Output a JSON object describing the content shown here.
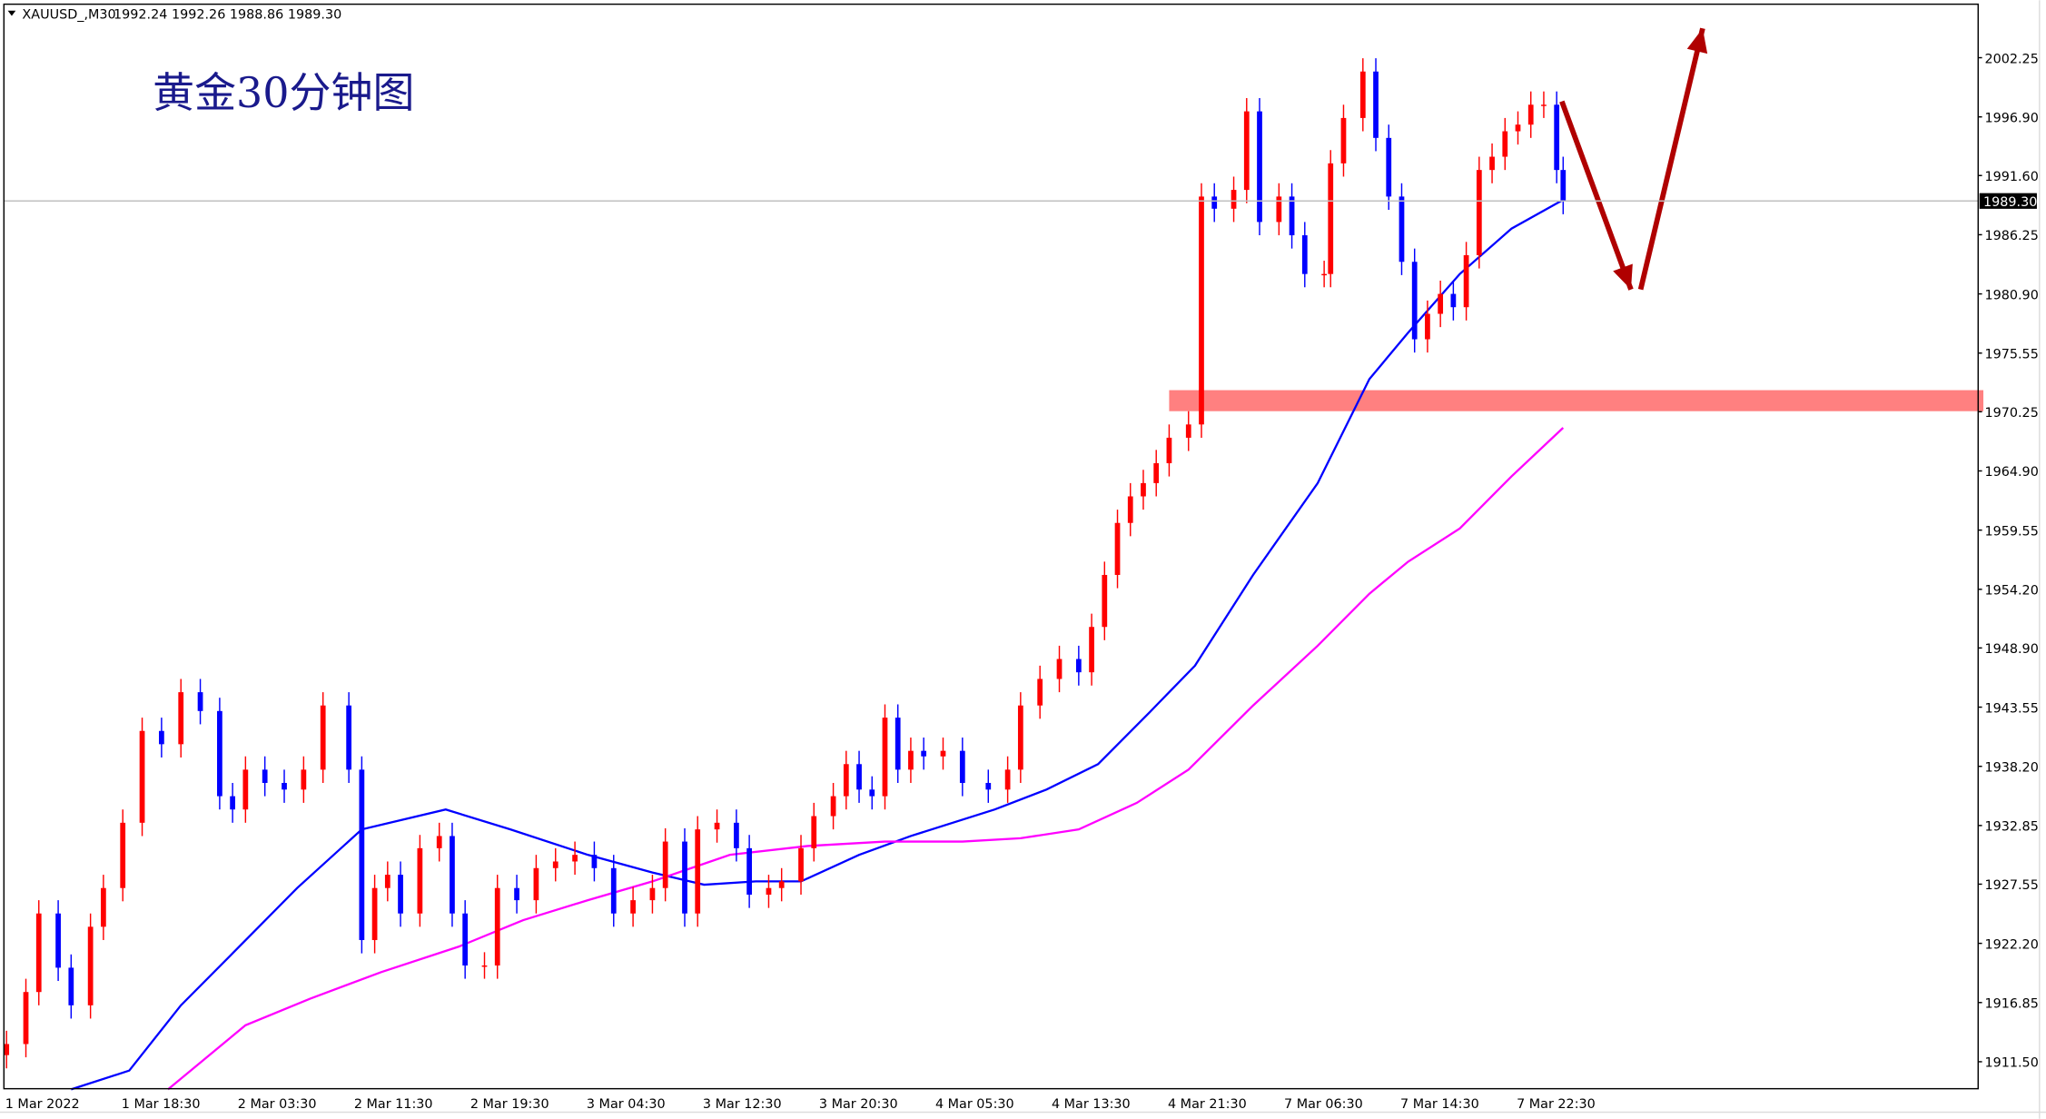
{
  "header": {
    "symbol": "XAUUSD_,M30",
    "ohlc": "1992.24 1992.26 1988.86 1989.30"
  },
  "chart_data": {
    "type": "candlestick",
    "title": "黄金30分钟图",
    "ylim": [
      1909.18,
      2007.44
    ],
    "y_ticks": [
      "2002.25",
      "1996.90",
      "1991.60",
      "1986.25",
      "1980.90",
      "1975.55",
      "1970.25",
      "1964.90",
      "1959.55",
      "1954.20",
      "1948.90",
      "1943.55",
      "1938.20",
      "1932.85",
      "1927.55",
      "1922.20",
      "1916.85",
      "1911.50"
    ],
    "x_ticks": [
      {
        "bar": 0,
        "label": "1 Mar 2022"
      },
      {
        "bar": 18,
        "label": "1 Mar 18:30"
      },
      {
        "bar": 36,
        "label": "2 Mar 03:30"
      },
      {
        "bar": 54,
        "label": "2 Mar 11:30"
      },
      {
        "bar": 72,
        "label": "2 Mar 19:30"
      },
      {
        "bar": 90,
        "label": "3 Mar 04:30"
      },
      {
        "bar": 108,
        "label": "3 Mar 12:30"
      },
      {
        "bar": 126,
        "label": "3 Mar 20:30"
      },
      {
        "bar": 144,
        "label": "4 Mar 05:30"
      },
      {
        "bar": 162,
        "label": "4 Mar 13:30"
      },
      {
        "bar": 180,
        "label": "4 Mar 21:30"
      },
      {
        "bar": 198,
        "label": "7 Mar 06:30"
      },
      {
        "bar": 216,
        "label": "7 Mar 14:30"
      },
      {
        "bar": 234,
        "label": "7 Mar 22:30"
      }
    ],
    "current_price": "1989.30",
    "bull_color": "#ff0000",
    "bear_color": "#0000ff",
    "closes": [
      [
        0,
        1913.1
      ],
      [
        3,
        1917.8
      ],
      [
        5,
        1924.9
      ],
      [
        8,
        1920.0
      ],
      [
        10,
        1916.6
      ],
      [
        13,
        1923.7
      ],
      [
        15,
        1927.2
      ],
      [
        18,
        1933.1
      ],
      [
        21,
        1941.4
      ],
      [
        24,
        1940.2
      ],
      [
        27,
        1944.9
      ],
      [
        30,
        1943.2
      ],
      [
        33,
        1935.5
      ],
      [
        35,
        1934.3
      ],
      [
        37,
        1937.9
      ],
      [
        40,
        1936.7
      ],
      [
        43,
        1936.1
      ],
      [
        46,
        1937.9
      ],
      [
        49,
        1943.7
      ],
      [
        53,
        1937.9
      ],
      [
        55,
        1922.5
      ],
      [
        57,
        1927.2
      ],
      [
        59,
        1928.4
      ],
      [
        61,
        1924.9
      ],
      [
        64,
        1930.8
      ],
      [
        67,
        1931.9
      ],
      [
        69,
        1924.9
      ],
      [
        71,
        1920.2
      ],
      [
        74,
        1920.2
      ],
      [
        76,
        1927.2
      ],
      [
        79,
        1926.1
      ],
      [
        82,
        1929.0
      ],
      [
        85,
        1929.6
      ],
      [
        88,
        1930.2
      ],
      [
        91,
        1929.0
      ],
      [
        94,
        1924.9
      ],
      [
        97,
        1926.1
      ],
      [
        100,
        1927.2
      ],
      [
        102,
        1931.4
      ],
      [
        105,
        1924.9
      ],
      [
        107,
        1932.5
      ],
      [
        110,
        1933.1
      ],
      [
        113,
        1930.8
      ],
      [
        115,
        1926.6
      ],
      [
        118,
        1927.2
      ],
      [
        120,
        1927.8
      ],
      [
        123,
        1930.8
      ],
      [
        125,
        1933.7
      ],
      [
        128,
        1935.5
      ],
      [
        130,
        1938.4
      ],
      [
        132,
        1936.1
      ],
      [
        134,
        1935.5
      ],
      [
        136,
        1942.6
      ],
      [
        138,
        1937.9
      ],
      [
        140,
        1939.6
      ],
      [
        142,
        1939.1
      ],
      [
        145,
        1939.6
      ],
      [
        148,
        1936.7
      ],
      [
        152,
        1936.1
      ],
      [
        155,
        1937.9
      ],
      [
        157,
        1943.7
      ],
      [
        160,
        1946.1
      ],
      [
        163,
        1947.9
      ],
      [
        166,
        1946.7
      ],
      [
        168,
        1950.8
      ],
      [
        170,
        1955.5
      ],
      [
        172,
        1960.2
      ],
      [
        174,
        1962.6
      ],
      [
        176,
        1963.8
      ],
      [
        178,
        1965.6
      ],
      [
        180,
        1967.9
      ],
      [
        183,
        1969.1
      ],
      [
        185,
        1989.7
      ],
      [
        187,
        1988.6
      ],
      [
        190,
        1990.3
      ],
      [
        192,
        1997.4
      ],
      [
        194,
        1987.4
      ],
      [
        197,
        1989.7
      ],
      [
        199,
        1986.2
      ],
      [
        201,
        1982.7
      ],
      [
        204,
        1982.7
      ],
      [
        205,
        1992.7
      ],
      [
        207,
        1996.8
      ],
      [
        210,
        2001.0
      ],
      [
        212,
        1995.0
      ],
      [
        214,
        1989.7
      ],
      [
        216,
        1983.8
      ],
      [
        218,
        1976.8
      ],
      [
        220,
        1979.1
      ],
      [
        222,
        1980.9
      ],
      [
        224,
        1979.7
      ],
      [
        226,
        1984.4
      ],
      [
        228,
        1992.1
      ],
      [
        230,
        1993.3
      ],
      [
        232,
        1995.6
      ],
      [
        234,
        1996.2
      ],
      [
        236,
        1998.0
      ],
      [
        238,
        1998.0
      ],
      [
        240,
        1992.1
      ],
      [
        241,
        1989.3
      ]
    ],
    "ma_fast": {
      "color": "#0000ff",
      "points": [
        [
          10,
          1909.0
        ],
        [
          19,
          1910.7
        ],
        [
          27,
          1916.6
        ],
        [
          35,
          1921.3
        ],
        [
          45,
          1927.2
        ],
        [
          55,
          1932.5
        ],
        [
          68,
          1934.3
        ],
        [
          78,
          1932.5
        ],
        [
          90,
          1930.2
        ],
        [
          100,
          1928.6
        ],
        [
          108,
          1927.5
        ],
        [
          116,
          1927.8
        ],
        [
          123,
          1927.8
        ],
        [
          132,
          1930.2
        ],
        [
          140,
          1931.9
        ],
        [
          153,
          1934.3
        ],
        [
          161,
          1936.1
        ],
        [
          169,
          1938.4
        ],
        [
          177,
          1943.1
        ],
        [
          184,
          1947.3
        ],
        [
          193,
          1955.5
        ],
        [
          203,
          1963.8
        ],
        [
          211,
          1973.2
        ],
        [
          217,
          1977.4
        ],
        [
          225,
          1982.7
        ],
        [
          233,
          1986.8
        ],
        [
          241,
          1989.4
        ]
      ]
    },
    "ma_slow": {
      "color": "#ff00ff",
      "points": [
        [
          25,
          1909.0
        ],
        [
          37,
          1914.8
        ],
        [
          47,
          1917.2
        ],
        [
          58,
          1919.6
        ],
        [
          70,
          1921.9
        ],
        [
          80,
          1924.3
        ],
        [
          90,
          1926.1
        ],
        [
          100,
          1927.8
        ],
        [
          112,
          1930.2
        ],
        [
          124,
          1931.0
        ],
        [
          136,
          1931.4
        ],
        [
          148,
          1931.4
        ],
        [
          157,
          1931.7
        ],
        [
          166,
          1932.5
        ],
        [
          175,
          1934.9
        ],
        [
          183,
          1937.9
        ],
        [
          193,
          1943.7
        ],
        [
          203,
          1949.1
        ],
        [
          211,
          1953.8
        ],
        [
          217,
          1956.7
        ],
        [
          225,
          1959.7
        ],
        [
          233,
          1964.4
        ],
        [
          241,
          1968.8
        ]
      ]
    },
    "zone": {
      "from_bar": 180,
      "price_high": 1972.2,
      "price_low": 1970.3,
      "color": "#ff8080"
    },
    "arrows": {
      "color": "#b00000",
      "segments": [
        [
          [
            240.8,
            1998.3
          ],
          [
            251.5,
            1981.3
          ]
        ],
        [
          [
            253,
            1981.3
          ],
          [
            262.6,
            2004.9
          ]
        ]
      ]
    }
  }
}
